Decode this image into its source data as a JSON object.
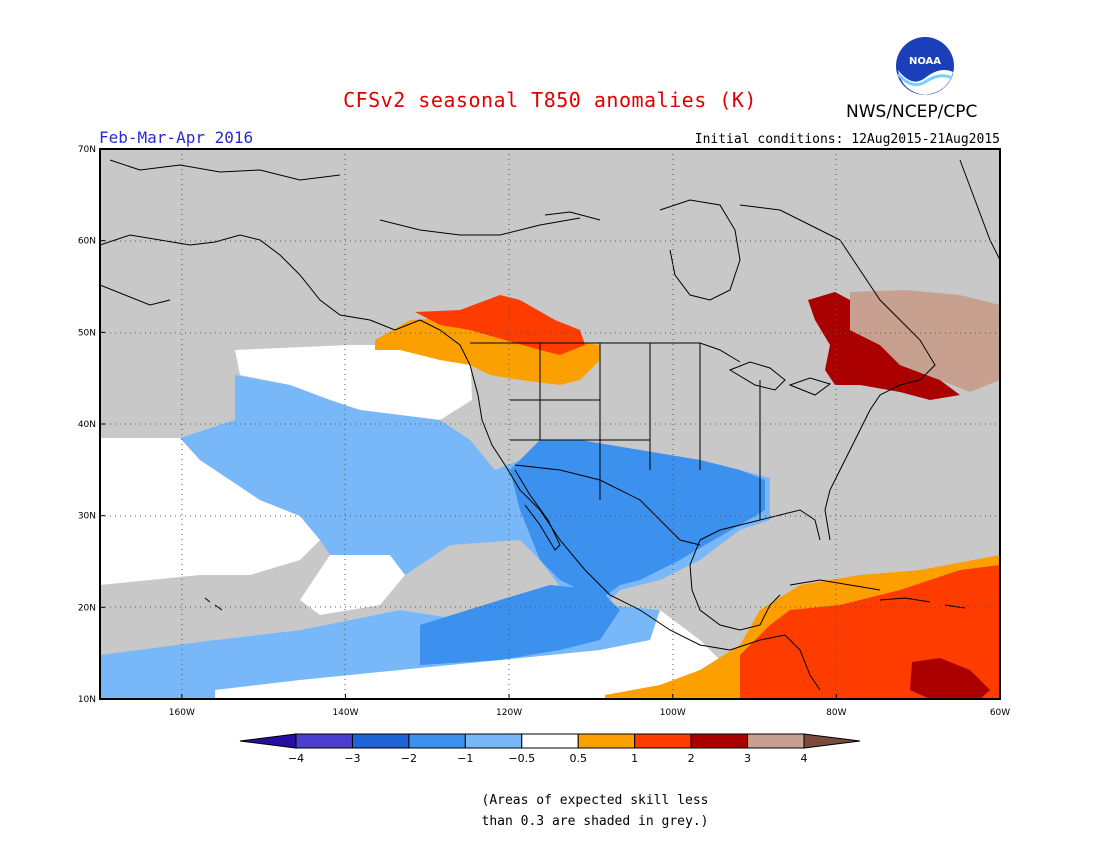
{
  "header": {
    "title": "CFSv2 seasonal T850 anomalies (K)",
    "agency": "NWS/NCEP/CPC",
    "logo_text": "NOAA",
    "period": "Feb-Mar-Apr 2016",
    "initial_conditions": "Initial conditions: 12Aug2015-21Aug2015"
  },
  "map": {
    "lon_range": [
      -170,
      -60
    ],
    "lat_range": [
      10,
      70
    ],
    "lon_ticks": [
      {
        "value": -160,
        "label": "160W"
      },
      {
        "value": -140,
        "label": "140W"
      },
      {
        "value": -120,
        "label": "120W"
      },
      {
        "value": -100,
        "label": "100W"
      },
      {
        "value": -80,
        "label": "80W"
      },
      {
        "value": -60,
        "label": "60W"
      }
    ],
    "lat_ticks": [
      {
        "value": 10,
        "label": "10N"
      },
      {
        "value": 20,
        "label": "20N"
      },
      {
        "value": 30,
        "label": "30N"
      },
      {
        "value": 40,
        "label": "40N"
      },
      {
        "value": 50,
        "label": "50N"
      },
      {
        "value": 60,
        "label": "60N"
      },
      {
        "value": 70,
        "label": "70N"
      }
    ],
    "grid": "dotted",
    "colors": {
      "grey": "#c8c8c8",
      "coast": "#000000"
    }
  },
  "colorbar": {
    "colors": [
      "#280ea0",
      "#4a3fd0",
      "#1e64d8",
      "#3c90ee",
      "#78b8f8",
      "#ffffff",
      "#fba000",
      "#ff3c00",
      "#aa0000",
      "#c8a090",
      "#7a4a3a"
    ],
    "labels": [
      "−4",
      "−3",
      "−2",
      "−1",
      "−0.5",
      "0.5",
      "1",
      "2",
      "3",
      "4"
    ]
  },
  "footnote": {
    "line1": "(Areas of expected skill less",
    "line2": "than 0.3 are shaded in grey.)"
  }
}
